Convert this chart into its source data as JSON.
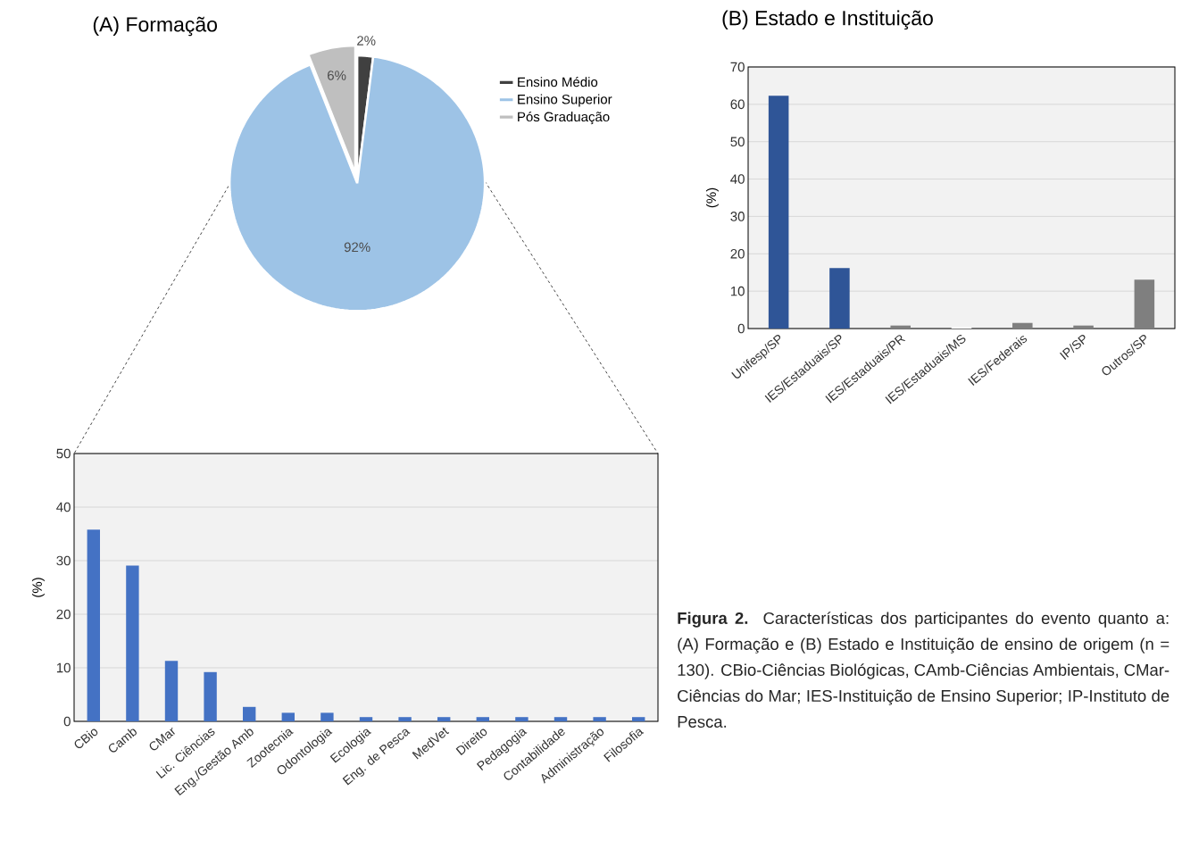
{
  "chart_data": [
    {
      "type": "pie",
      "title": "(A) Formação",
      "categories": [
        "Ensino Médio",
        "Ensino Superior",
        "Pós Graduação"
      ],
      "values": [
        2,
        92,
        6
      ],
      "colors": [
        "#404040",
        "#9dc3e6",
        "#bfbfbf"
      ],
      "value_labels": [
        "2%",
        "92%",
        "6%"
      ],
      "legend": "right"
    },
    {
      "type": "bar",
      "title": "(B) Estado e Instituição",
      "ylabel": "(%)",
      "categories": [
        "Unifesp/SP",
        "IES/Estaduais/SP",
        "IES/Estaduais/PR",
        "IES/Estaduais/MS",
        "IES/Federais",
        "IP/SP",
        "Outros/SP"
      ],
      "values": [
        62.3,
        16.2,
        0.8,
        0.4,
        1.5,
        0.8,
        13.1
      ],
      "colors": [
        "#2f5597",
        "#2f5597",
        "#7f7f7f",
        "#ffffff",
        "#7f7f7f",
        "#7f7f7f",
        "#7f7f7f"
      ],
      "ylim": [
        0,
        70
      ],
      "yticks": [
        0,
        10,
        20,
        30,
        40,
        50,
        60,
        70
      ],
      "grid": "y"
    },
    {
      "type": "bar",
      "ylabel": "(%)",
      "categories": [
        "CBio",
        "Camb",
        "CMar",
        "Lic. Ciências",
        "Eng./Gestão Amb",
        "Zootecnia",
        "Odontologia",
        "Ecologia",
        "Eng. de Pesca",
        "MedVet",
        "Direito",
        "Pedagogia",
        "Contabilidade",
        "Administração",
        "Filosofia"
      ],
      "values": [
        35.8,
        29.1,
        11.3,
        9.2,
        2.7,
        1.6,
        1.6,
        0.8,
        0.8,
        0.8,
        0.8,
        0.8,
        0.8,
        0.8,
        0.8
      ],
      "color": "#4472c4",
      "ylim": [
        0,
        50
      ],
      "yticks": [
        0,
        10,
        20,
        30,
        40,
        50
      ],
      "grid": "y"
    },
    {
      "type": "other",
      "annotations": [
        "**Figura 2.** Características dos participantes do evento quanto a: (A) Formação e (B) Estado e Instituição de ensino de origem (n = 130). CBio-Ciências Biológicas, CAmb-Ciências Ambientais, CMar-Ciências do Mar; IES-Instituição de Ensino Superior; IP-Instituto de Pesca."
      ]
    }
  ]
}
